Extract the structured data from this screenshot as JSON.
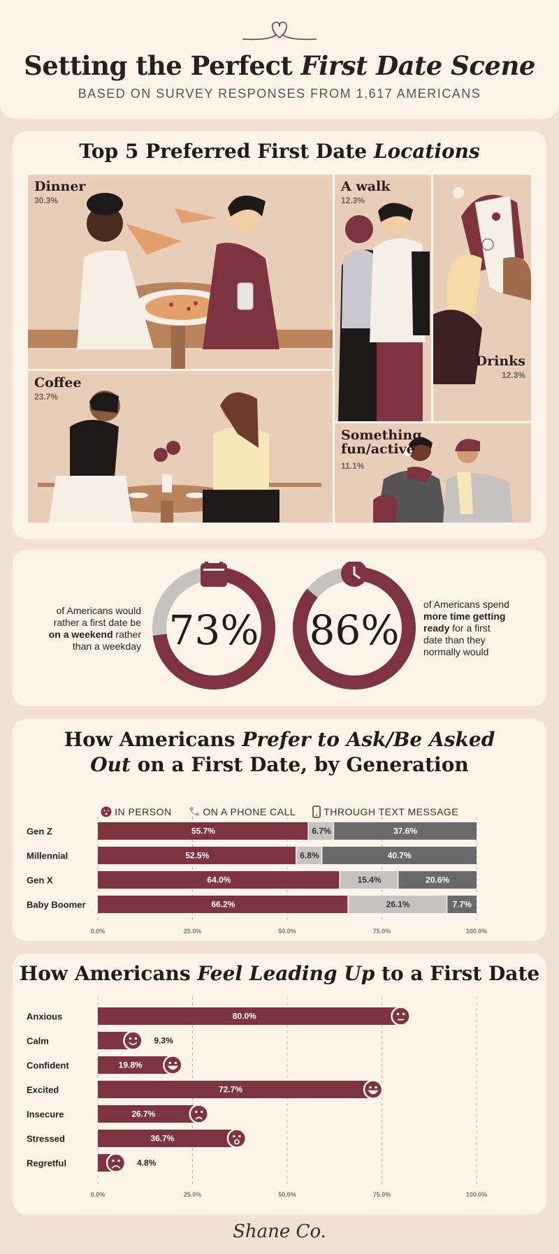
{
  "header": {
    "title_part1": "Setting the Perfect ",
    "title_part2": "First Date Scene",
    "subtitle": "BASED ON SURVEY RESPONSES FROM 1,617 AMERICANS"
  },
  "locations": {
    "title_part1": "Top 5 Preferred First Date ",
    "title_part2": "Locations",
    "items": [
      {
        "label": "Dinner",
        "pct": "30.3%"
      },
      {
        "label": "A walk",
        "pct": "12.3%"
      },
      {
        "label": "Drinks",
        "pct": "12.3%"
      },
      {
        "label": "Coffee",
        "pct": "23.7%"
      },
      {
        "label": "Something fun/active",
        "pct": "11.1%"
      }
    ]
  },
  "stats": {
    "weekend": {
      "value": 73,
      "label": "73%",
      "text1": "of Americans would",
      "text2": "rather a first date be",
      "text3_bold": "on a weekend",
      "text3": " rather",
      "text4": "than a weekday"
    },
    "ready": {
      "value": 86,
      "label": "86%",
      "text1": "of Americans spend",
      "text2_bold": "more time getting",
      "text3_bold": "ready",
      "text3": " for a first",
      "text4": "date than they",
      "text5": "normally would"
    }
  },
  "colors": {
    "maroon": "#7d3340",
    "grey": "#6a6a6a",
    "lightgrey": "#c6c2c0",
    "cream": "#fcf3e9"
  },
  "chart_data": [
    {
      "type": "bar",
      "stacked": true,
      "orientation": "horizontal",
      "title_part1": "How Americans ",
      "title_part2": "Prefer to Ask/Be Asked",
      "title_part3": "Out",
      "title_part4": " on a First Date, by Generation",
      "categories": [
        "Gen Z",
        "Millennial",
        "Gen X",
        "Baby Boomer"
      ],
      "series": [
        {
          "name": "IN PERSON",
          "values": [
            55.7,
            52.5,
            64.0,
            66.2
          ],
          "color": "#7d3340",
          "icon": "face-kiss-icon"
        },
        {
          "name": "ON A PHONE CALL",
          "values": [
            6.7,
            6.8,
            15.4,
            26.1
          ],
          "color": "#c6c2c0",
          "icon": "phone-icon"
        },
        {
          "name": "THROUGH TEXT MESSAGE",
          "values": [
            37.6,
            40.7,
            20.6,
            7.7
          ],
          "color": "#6a6a6a",
          "icon": "smartphone-icon"
        }
      ],
      "xlim": [
        0,
        100
      ],
      "ticks": [
        "0.0%",
        "25.0%",
        "50.0%",
        "75.0%",
        "100.0%"
      ],
      "grid": true
    },
    {
      "type": "bar",
      "orientation": "horizontal",
      "title_part1": "How Americans ",
      "title_part2": "Feel Leading Up",
      "title_part3": " to a First Date",
      "categories": [
        "Anxious",
        "Calm",
        "Confident",
        "Excited",
        "Insecure",
        "Stressed",
        "Regretful"
      ],
      "values": [
        80.0,
        9.3,
        19.8,
        72.7,
        26.7,
        36.7,
        4.8
      ],
      "labels": [
        "80.0%",
        "9.3%",
        "19.8%",
        "72.7%",
        "26.7%",
        "36.7%",
        "4.8%"
      ],
      "icons": [
        "anxious-face-icon",
        "calm-face-icon",
        "confident-face-icon",
        "excited-face-icon",
        "insecure-face-icon",
        "stressed-face-icon",
        "regretful-face-icon"
      ],
      "xlim": [
        0,
        100
      ],
      "ticks": [
        "0.0%",
        "25.0%",
        "50.0%",
        "75.0%",
        "100.0%"
      ],
      "grid": true
    }
  ],
  "footer": {
    "brand": "Shane Co."
  }
}
